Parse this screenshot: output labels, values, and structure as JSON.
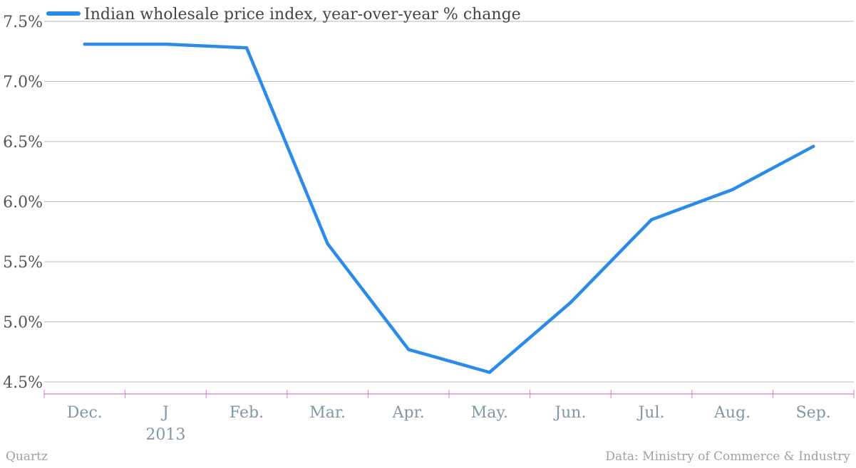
{
  "chart_data": {
    "type": "line",
    "categories": [
      "Dec.",
      "J",
      "Feb.",
      "Mar.",
      "Apr.",
      "May.",
      "Jun.",
      "Jul.",
      "Aug.",
      "Sep."
    ],
    "year_label": "2013",
    "series": [
      {
        "name": "Indian wholesale price index, year-over-year % change",
        "x": [
          "Dec.",
          "J",
          "Feb.",
          "Mar.",
          "Apr.",
          "May.",
          "Jun.",
          "Jul.",
          "Aug.",
          "Sep."
        ],
        "values": [
          7.31,
          7.31,
          7.28,
          5.65,
          4.77,
          4.58,
          5.16,
          5.85,
          6.1,
          6.46
        ]
      }
    ],
    "yticks": [
      "4.5%",
      "5.0%",
      "5.5%",
      "6.0%",
      "6.5%",
      "7.0%",
      "7.5%"
    ],
    "ytick_values": [
      4.5,
      5.0,
      5.5,
      6.0,
      6.5,
      7.0,
      7.5
    ],
    "ylim": [
      4.4,
      7.5
    ],
    "grid": true,
    "legend": "top-left",
    "line_color": "#2a8be8",
    "axis_color": "#d67fc8"
  },
  "footer": {
    "source": "Quartz",
    "credit": "Data: Ministry of Commerce & Industry"
  }
}
